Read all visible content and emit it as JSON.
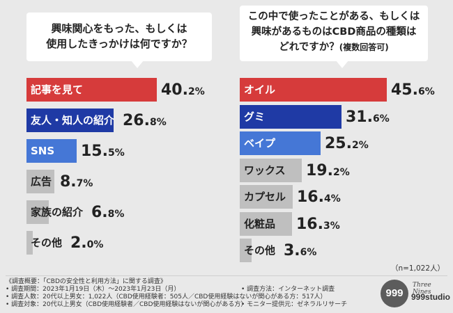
{
  "colors": {
    "red": "#d63b3b",
    "navy": "#1f3aa5",
    "blue": "#4577d6",
    "gray": "#bfbfbf",
    "bg": "#e9e9e9"
  },
  "left_question": {
    "lines": [
      "興味関心をもった、もしくは",
      "使用したきっかけは何ですか？"
    ]
  },
  "right_question": {
    "lines": [
      "この中で使ったことがある、もしくは",
      "興味があるものはCBD商品の種類は",
      "どれですか？"
    ],
    "note": "(複数回答可)"
  },
  "chart_data": [
    {
      "type": "bar",
      "orientation": "horizontal",
      "title": "興味関心をもった、もしくは使用したきっかけは何ですか？",
      "categories": [
        "記事を見て",
        "友人・知人の紹介",
        "SNS",
        "広告",
        "家族の紹介",
        "その他"
      ],
      "values": [
        40.2,
        26.8,
        15.5,
        8.7,
        6.8,
        2.0
      ],
      "value_labels": [
        {
          "int": "40.",
          "dec": "2%"
        },
        {
          "int": "26.",
          "dec": "8%"
        },
        {
          "int": "15.",
          "dec": "5%"
        },
        {
          "int": "8.",
          "dec": "7%"
        },
        {
          "int": "6.",
          "dec": "8%"
        },
        {
          "int": "2.",
          "dec": "0%"
        }
      ],
      "bar_colors": [
        "#d63b3b",
        "#1f3aa5",
        "#4577d6",
        "#bfbfbf",
        "#bfbfbf",
        "#bfbfbf"
      ],
      "label_colors": [
        "#ffffff",
        "#ffffff",
        "#ffffff",
        "#222222",
        "#222222",
        "#222222"
      ],
      "unit": "%",
      "xlim": [
        0,
        100
      ]
    },
    {
      "type": "bar",
      "orientation": "horizontal",
      "title": "この中で使ったことがある、もしくは興味があるものはCBD商品の種類はどれですか？(複数回答可)",
      "categories": [
        "オイル",
        "グミ",
        "ベイプ",
        "ワックス",
        "カプセル",
        "化粧品",
        "その他"
      ],
      "values": [
        45.6,
        31.6,
        25.2,
        19.2,
        16.4,
        16.3,
        3.6
      ],
      "value_labels": [
        {
          "int": "45.",
          "dec": "6%"
        },
        {
          "int": "31.",
          "dec": "6%"
        },
        {
          "int": "25.",
          "dec": "2%"
        },
        {
          "int": "19.",
          "dec": "2%"
        },
        {
          "int": "16.",
          "dec": "4%"
        },
        {
          "int": "16.",
          "dec": "3%"
        },
        {
          "int": "3.",
          "dec": "6%"
        }
      ],
      "bar_colors": [
        "#d63b3b",
        "#1f3aa5",
        "#4577d6",
        "#bfbfbf",
        "#bfbfbf",
        "#bfbfbf",
        "#bfbfbf"
      ],
      "label_colors": [
        "#ffffff",
        "#ffffff",
        "#ffffff",
        "#222222",
        "#222222",
        "#222222",
        "#222222"
      ],
      "unit": "%",
      "xlim": [
        0,
        100
      ]
    }
  ],
  "sample_size": "（n=1,022人）",
  "footer": {
    "notes_left": [
      "《調査概要：「CBDの安全性と利用方法」に関する調査》",
      "• 調査期間：2023年1月19日（木）〜2023年1月23日（月）",
      "• 調査人数：20代以上男女：1,022人（CBD使用経験者：505人／CBD使用経験はないが関心がある方：517人）",
      "• 調査対象：20代以上男女（CBD使用経験者／CBD使用経験はないが関心がある方）"
    ],
    "notes_right": [
      "• 調査方法：インターネット調査",
      "• モニター提供元：ゼネラルリサーチ"
    ]
  },
  "logo": {
    "mark": "999",
    "script": "Three Nines",
    "word": "999studio"
  }
}
